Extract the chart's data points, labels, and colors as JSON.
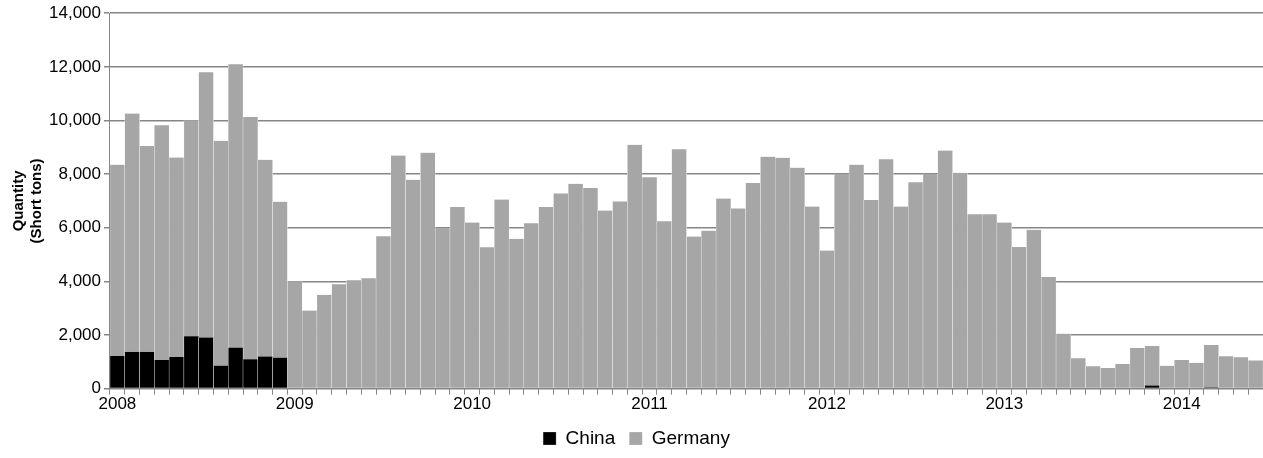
{
  "chart_data": {
    "type": "bar",
    "stacked": true,
    "ylabel": "Quantity\n(Short tons)",
    "categories": [
      "2008",
      null,
      null,
      null,
      null,
      null,
      null,
      null,
      null,
      null,
      null,
      null,
      "2009",
      null,
      null,
      null,
      null,
      null,
      null,
      null,
      null,
      null,
      null,
      null,
      "2010",
      null,
      null,
      null,
      null,
      null,
      null,
      null,
      null,
      null,
      null,
      null,
      "2011",
      null,
      null,
      null,
      null,
      null,
      null,
      null,
      null,
      null,
      null,
      null,
      "2012",
      null,
      null,
      null,
      null,
      null,
      null,
      null,
      null,
      null,
      null,
      null,
      "2013",
      null,
      null,
      null,
      null,
      null,
      null,
      null,
      null,
      null,
      null,
      null,
      "2014",
      null,
      null,
      null,
      null,
      null
    ],
    "series": [
      {
        "name": "China",
        "color": "#000000",
        "values": [
          1220,
          1370,
          1370,
          1070,
          1180,
          1950,
          1910,
          860,
          1530,
          1090,
          1200,
          1160,
          0,
          0,
          0,
          0,
          0,
          0,
          0,
          0,
          0,
          0,
          0,
          0,
          0,
          0,
          0,
          0,
          0,
          0,
          0,
          0,
          0,
          0,
          0,
          0,
          0,
          0,
          0,
          0,
          0,
          0,
          0,
          0,
          0,
          0,
          0,
          0,
          0,
          0,
          0,
          0,
          0,
          0,
          0,
          0,
          0,
          0,
          0,
          0,
          0,
          0,
          0,
          0,
          0,
          0,
          0,
          0,
          0,
          0,
          120,
          0,
          0,
          0,
          50,
          0,
          0,
          0
        ]
      },
      {
        "name": "Germany",
        "color": "#a6a6a6",
        "values": [
          7130,
          8890,
          7680,
          8750,
          7440,
          8060,
          9890,
          8380,
          10570,
          9040,
          7330,
          5810,
          4000,
          2910,
          3500,
          3890,
          4040,
          4120,
          5680,
          8690,
          7790,
          8800,
          5980,
          6770,
          6190,
          5270,
          7050,
          5590,
          6170,
          6770,
          7280,
          7640,
          7480,
          6640,
          6980,
          9090,
          7880,
          6240,
          8930,
          5670,
          5890,
          7090,
          6720,
          7670,
          8650,
          8610,
          8240,
          6790,
          5150,
          8010,
          8350,
          7030,
          8550,
          6790,
          7700,
          8010,
          8880,
          8050,
          6500,
          6500,
          6190,
          5280,
          5920,
          4160,
          2050,
          1130,
          830,
          770,
          920,
          1510,
          1470,
          850,
          1070,
          960,
          1580,
          1210,
          1170,
          1050
        ]
      }
    ],
    "ylim": [
      0,
      14000
    ],
    "yticks": [
      0,
      {
        "value": 2000,
        "label": "2,000"
      },
      {
        "value": 4000,
        "label": "4,000"
      },
      {
        "value": 6000,
        "label": "6,000"
      },
      {
        "value": 8000,
        "label": "8,000"
      },
      {
        "value": 10000,
        "label": "10,000"
      },
      {
        "value": 12000,
        "label": "12,000"
      },
      {
        "value": 14000,
        "label": "14,000"
      }
    ],
    "grid": "y",
    "legend": "bottom"
  }
}
